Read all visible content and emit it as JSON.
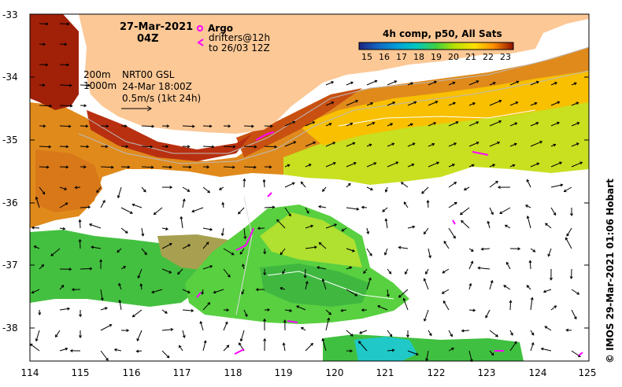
{
  "header": {
    "date": "27-Mar-2021",
    "time": "04Z"
  },
  "legend": {
    "argo": "Argo",
    "drifters_line1": "drifters@12h",
    "drifters_line2": "to 26/03 12Z",
    "depth1": "200m",
    "depth2": "1000m",
    "altimetry_line1": "NRT00 GSL",
    "altimetry_line2": "24-Mar 18:00Z",
    "vector_scale": "0.5m/s (1kt 24h)",
    "argo_color": "#ff00ff",
    "drifter_color": "#ff00ff"
  },
  "colorbar": {
    "title": "4h comp, p50, All Sats",
    "ticks": [
      "15",
      "16",
      "17",
      "18",
      "19",
      "20",
      "21",
      "22",
      "23"
    ],
    "colors": [
      "#1a237e",
      "#1565c0",
      "#00a0d8",
      "#00c8c0",
      "#40d040",
      "#b8e000",
      "#ffe000",
      "#ff9000",
      "#d03000",
      "#901000"
    ]
  },
  "axes": {
    "lat_ticks": [
      "-33",
      "-34",
      "-35",
      "-36",
      "-37",
      "-38"
    ],
    "lon_ticks": [
      "114",
      "115",
      "116",
      "117",
      "118",
      "119",
      "120",
      "121",
      "122",
      "123",
      "124",
      "125"
    ]
  },
  "credit": "© IMOS 29-Mar-2021 01:06 Hobart",
  "colors": {
    "land": "#fcc896",
    "missing": "#ffffff"
  }
}
